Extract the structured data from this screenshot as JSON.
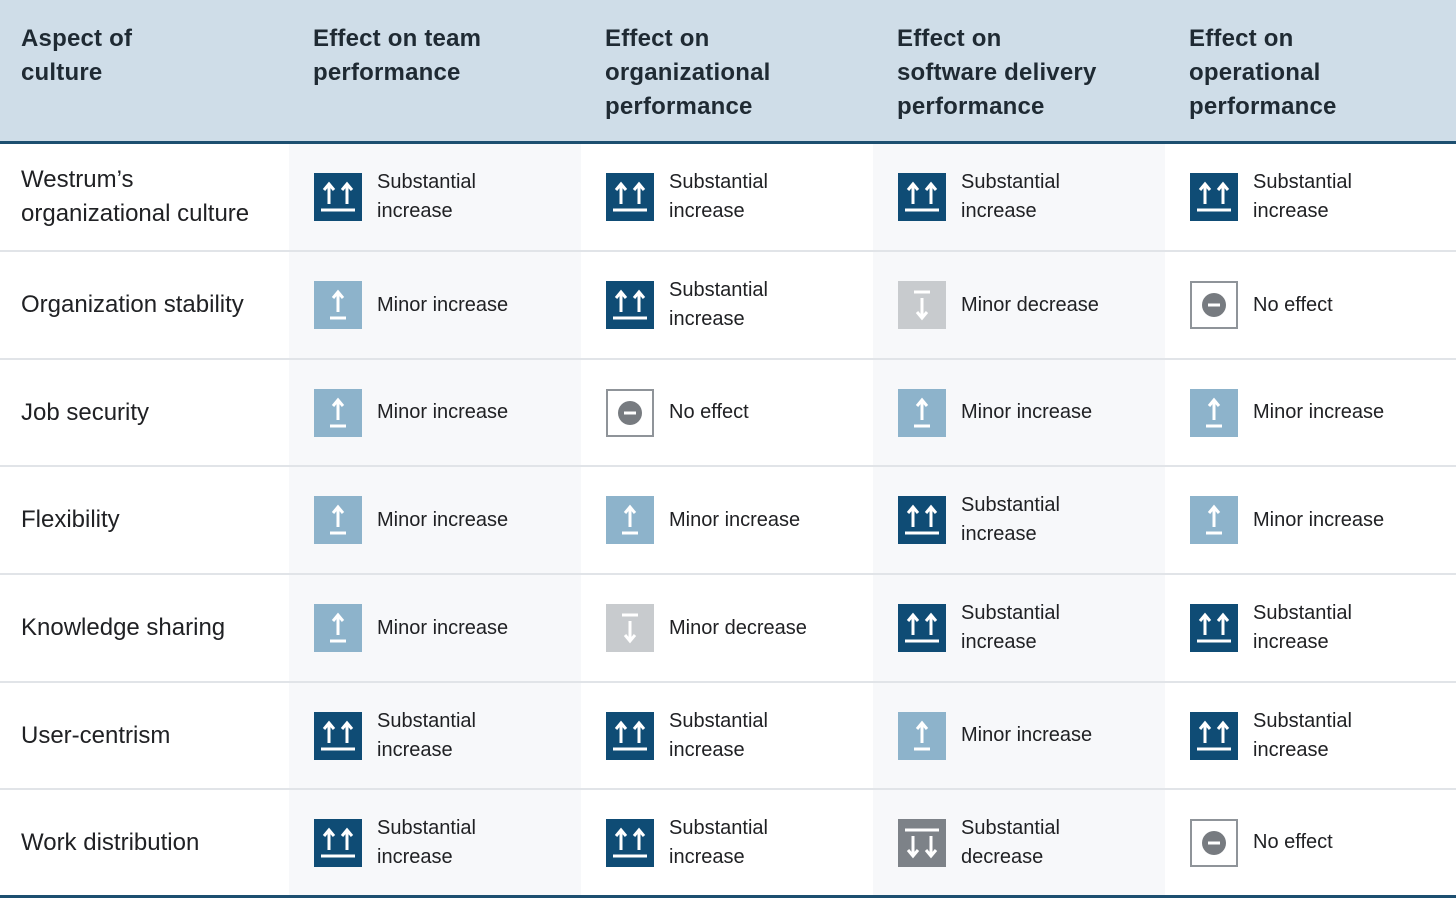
{
  "columns": [
    "Aspect of\nculture",
    "Effect on team\nperformance",
    "Effect on\norganizational\nperformance",
    "Effect on\nsoftware delivery\nperformance",
    "Effect on\noperational\nperformance"
  ],
  "legend": {
    "sub-inc": "Substantial increase",
    "min-inc": "Minor increase",
    "min-dec": "Minor decrease",
    "sub-dec": "Substantial decrease",
    "no-eff": "No effect"
  },
  "icon_names": {
    "sub-inc": "double-up-arrow-icon",
    "min-inc": "up-arrow-icon",
    "min-dec": "down-arrow-icon",
    "sub-dec": "double-down-arrow-icon",
    "no-eff": "minus-circle-icon"
  },
  "colors": {
    "substantial_increase": "#0f4c75",
    "minor_increase": "#8db3cb",
    "minor_decrease": "#c8cbce",
    "substantial_decrease": "#7d8288",
    "no_effect_border": "#8f9499",
    "header_bg": "#cfdde8",
    "rule": "#1d4f70"
  },
  "rows": [
    {
      "aspect": "Westrum’s\norganizational culture",
      "effects": [
        "sub-inc",
        "sub-inc",
        "sub-inc",
        "sub-inc"
      ]
    },
    {
      "aspect": "Organization stability",
      "effects": [
        "min-inc",
        "sub-inc",
        "min-dec",
        "no-eff"
      ]
    },
    {
      "aspect": "Job security",
      "effects": [
        "min-inc",
        "no-eff",
        "min-inc",
        "min-inc"
      ]
    },
    {
      "aspect": "Flexibility",
      "effects": [
        "min-inc",
        "min-inc",
        "sub-inc",
        "min-inc"
      ]
    },
    {
      "aspect": "Knowledge sharing",
      "effects": [
        "min-inc",
        "min-dec",
        "sub-inc",
        "sub-inc"
      ]
    },
    {
      "aspect": "User-centrism",
      "effects": [
        "sub-inc",
        "sub-inc",
        "min-inc",
        "sub-inc"
      ]
    },
    {
      "aspect": "Work distribution",
      "effects": [
        "sub-inc",
        "sub-inc",
        "sub-dec",
        "no-eff"
      ]
    }
  ]
}
